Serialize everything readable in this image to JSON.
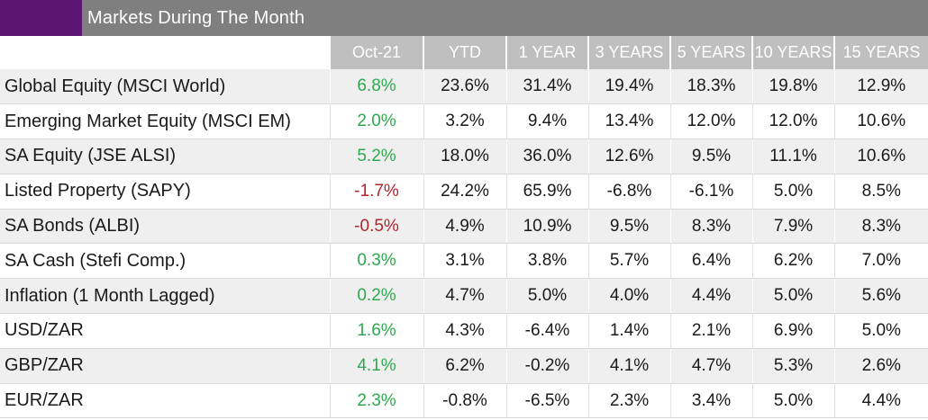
{
  "title": "Markets During The Month",
  "colors": {
    "accent": "#5a1670",
    "title_bg": "#7f7f7f",
    "header_bg": "#bfbfbf",
    "positive": "#2fa84f",
    "negative": "#b3242b"
  },
  "headers": [
    "Oct-21",
    "YTD",
    "1 YEAR",
    "3 YEARS",
    "5 YEARS",
    "10 YEARS",
    "15 YEARS"
  ],
  "rows": [
    {
      "label": "Global Equity (MSCI World)",
      "month_sign": "pos",
      "values": [
        "6.8%",
        "23.6%",
        "31.4%",
        "19.4%",
        "18.3%",
        "19.8%",
        "12.9%"
      ]
    },
    {
      "label": "Emerging Market Equity (MSCI EM)",
      "month_sign": "pos",
      "values": [
        "2.0%",
        "3.2%",
        "9.4%",
        "13.4%",
        "12.0%",
        "12.0%",
        "10.6%"
      ]
    },
    {
      "label": "SA Equity (JSE ALSI)",
      "month_sign": "pos",
      "values": [
        "5.2%",
        "18.0%",
        "36.0%",
        "12.6%",
        "9.5%",
        "11.1%",
        "10.6%"
      ]
    },
    {
      "label": "Listed Property (SAPY)",
      "month_sign": "neg",
      "values": [
        "-1.7%",
        "24.2%",
        "65.9%",
        "-6.8%",
        "-6.1%",
        "5.0%",
        "8.5%"
      ]
    },
    {
      "label": "SA Bonds (ALBI)",
      "month_sign": "neg",
      "values": [
        "-0.5%",
        "4.9%",
        "10.9%",
        "9.5%",
        "8.3%",
        "7.9%",
        "8.3%"
      ]
    },
    {
      "label": "SA Cash (Stefi Comp.)",
      "month_sign": "pos",
      "values": [
        "0.3%",
        "3.1%",
        "3.8%",
        "5.7%",
        "6.4%",
        "6.2%",
        "7.0%"
      ]
    },
    {
      "label": "Inflation (1 Month Lagged)",
      "month_sign": "pos",
      "values": [
        "0.2%",
        "4.7%",
        "5.0%",
        "4.0%",
        "4.4%",
        "5.0%",
        "5.6%"
      ]
    },
    {
      "label": "USD/ZAR",
      "month_sign": "pos",
      "values": [
        "1.6%",
        "4.3%",
        "-6.4%",
        "1.4%",
        "2.1%",
        "6.9%",
        "5.0%"
      ]
    },
    {
      "label": "GBP/ZAR",
      "month_sign": "pos",
      "values": [
        "4.1%",
        "6.2%",
        "-0.2%",
        "4.1%",
        "4.7%",
        "5.3%",
        "2.6%"
      ]
    },
    {
      "label": "EUR/ZAR",
      "month_sign": "pos",
      "values": [
        "2.3%",
        "-0.8%",
        "-6.5%",
        "2.3%",
        "3.4%",
        "5.0%",
        "4.4%"
      ]
    }
  ]
}
